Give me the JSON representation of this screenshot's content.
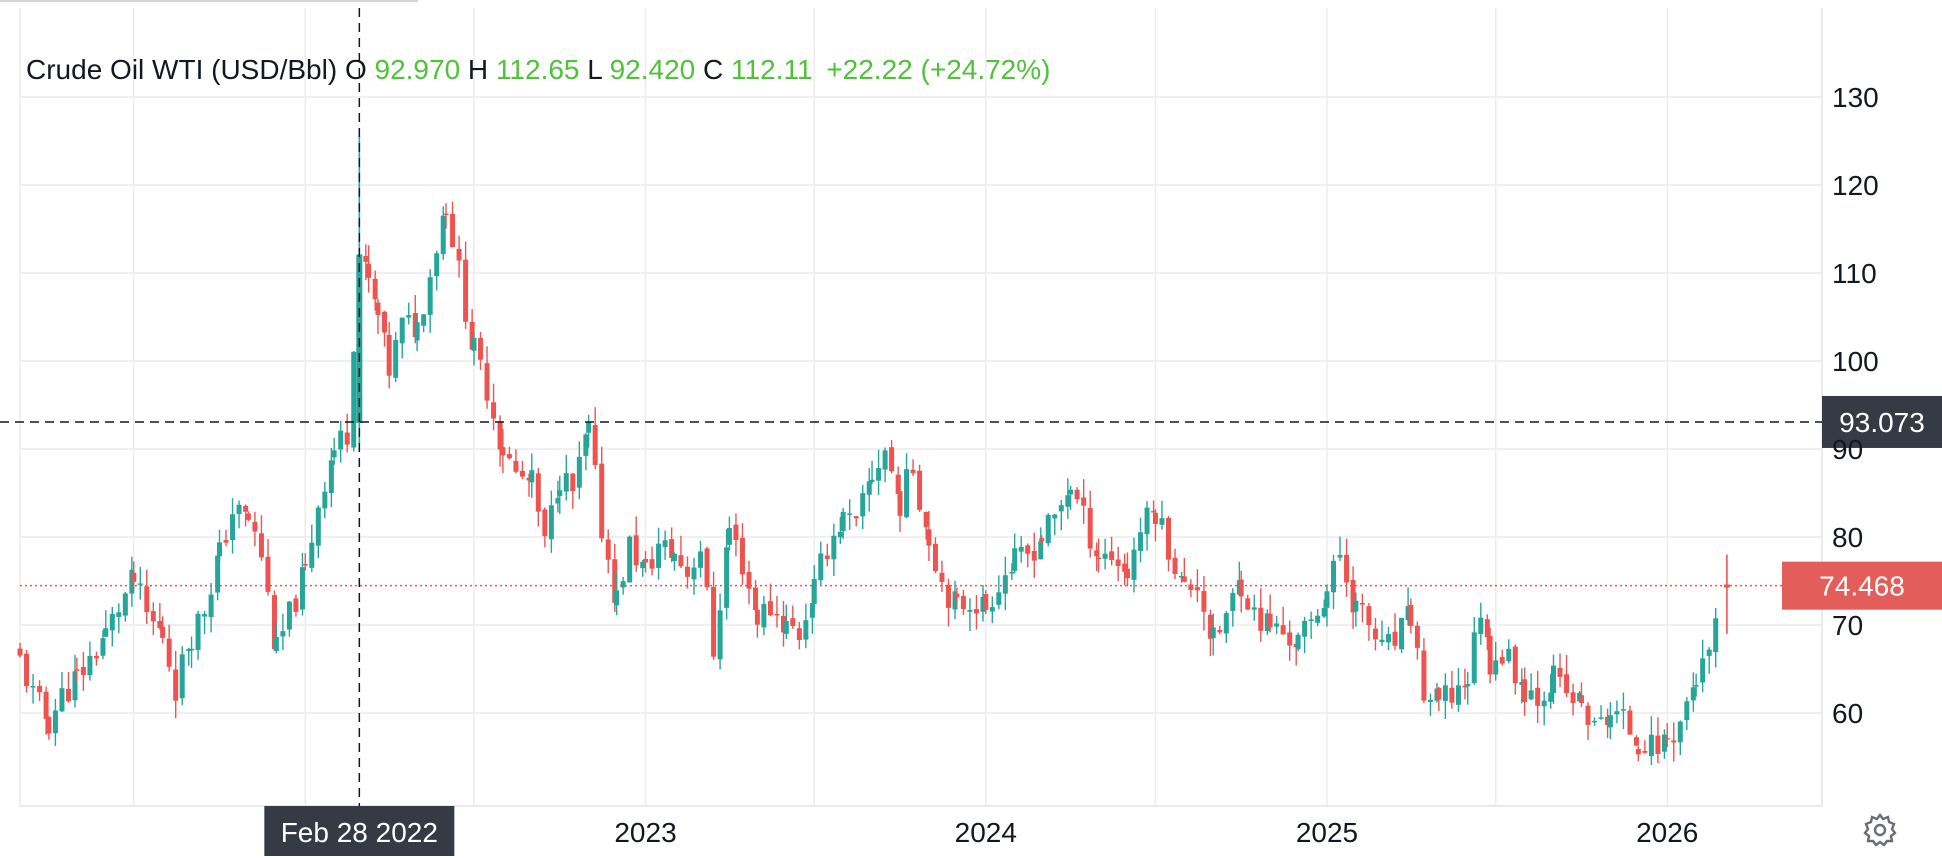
{
  "legend": {
    "symbol": "Crude Oil WTI (USD/Bbl)",
    "o_label": "O",
    "open": "92.970",
    "h_label": "H",
    "high": "112.65",
    "l_label": "L",
    "low": "92.420",
    "c_label": "C",
    "close": "112.11",
    "change": "+22.22 (+24.72%)"
  },
  "crosshair": {
    "date_label": "Feb 28 2022",
    "price_label": "93.073",
    "date": "2022-02-28",
    "price": 93.073
  },
  "last_price": {
    "label": "74.468",
    "value": 74.468
  },
  "colors": {
    "up": "#26a69a",
    "down": "#ef5350",
    "legend_value": "#4fc23a",
    "last_price_bg": "#e35d5a",
    "crosshair_bg": "#363a45",
    "grid": "#ececec"
  },
  "settings_icon": "gear-icon",
  "chart_data": {
    "type": "candlestick",
    "title": "Crude Oil WTI (USD/Bbl)",
    "interval": "weekly",
    "ylim": [
      50,
      140
    ],
    "yticks": [
      "60",
      "70",
      "80",
      "90",
      "100",
      "110",
      "120",
      "130"
    ],
    "xticks": [
      "2023",
      "2024",
      "2025",
      "2026"
    ],
    "xlim": [
      "2021-03-01",
      "2026-06-01"
    ],
    "grid": true,
    "series": [
      {
        "name": "Crude Oil WTI",
        "points": [
          [
            "2021-03-01",
            66
          ],
          [
            "2021-03-15",
            62
          ],
          [
            "2021-04-01",
            59
          ],
          [
            "2021-04-15",
            62
          ],
          [
            "2021-05-01",
            64
          ],
          [
            "2021-05-15",
            66
          ],
          [
            "2021-06-01",
            69
          ],
          [
            "2021-06-15",
            72
          ],
          [
            "2021-07-01",
            75
          ],
          [
            "2021-07-15",
            71
          ],
          [
            "2021-08-01",
            69
          ],
          [
            "2021-08-15",
            63
          ],
          [
            "2021-09-01",
            69
          ],
          [
            "2021-09-15",
            72
          ],
          [
            "2021-10-01",
            78
          ],
          [
            "2021-10-15",
            83
          ],
          [
            "2021-11-01",
            82
          ],
          [
            "2021-11-15",
            78
          ],
          [
            "2021-12-01",
            67
          ],
          [
            "2021-12-15",
            71
          ],
          [
            "2022-01-01",
            76
          ],
          [
            "2022-01-15",
            84
          ],
          [
            "2022-02-01",
            90
          ],
          [
            "2022-02-15",
            92
          ],
          [
            "2022-02-28",
            112
          ],
          [
            "2022-03-10",
            109
          ],
          [
            "2022-03-20",
            105
          ],
          [
            "2022-04-01",
            99
          ],
          [
            "2022-04-15",
            104
          ],
          [
            "2022-05-01",
            104
          ],
          [
            "2022-05-15",
            110
          ],
          [
            "2022-06-01",
            118
          ],
          [
            "2022-06-15",
            110
          ],
          [
            "2022-07-01",
            101
          ],
          [
            "2022-07-15",
            97
          ],
          [
            "2022-08-01",
            90
          ],
          [
            "2022-08-15",
            87
          ],
          [
            "2022-09-01",
            86
          ],
          [
            "2022-09-15",
            79
          ],
          [
            "2022-10-01",
            87
          ],
          [
            "2022-10-15",
            85
          ],
          [
            "2022-11-01",
            92
          ],
          [
            "2022-11-15",
            81
          ],
          [
            "2022-12-01",
            73
          ],
          [
            "2022-12-15",
            79
          ],
          [
            "2023-01-01",
            76
          ],
          [
            "2023-01-15",
            79
          ],
          [
            "2023-02-01",
            78
          ],
          [
            "2023-02-15",
            76
          ],
          [
            "2023-03-01",
            79
          ],
          [
            "2023-03-15",
            67
          ],
          [
            "2023-04-01",
            81
          ],
          [
            "2023-04-15",
            77
          ],
          [
            "2023-05-01",
            71
          ],
          [
            "2023-05-15",
            72
          ],
          [
            "2023-06-01",
            70
          ],
          [
            "2023-06-15",
            69
          ],
          [
            "2023-07-01",
            74
          ],
          [
            "2023-07-15",
            79
          ],
          [
            "2023-08-01",
            82
          ],
          [
            "2023-08-15",
            81
          ],
          [
            "2023-09-01",
            87
          ],
          [
            "2023-09-15",
            90
          ],
          [
            "2023-10-01",
            84
          ],
          [
            "2023-10-15",
            88
          ],
          [
            "2023-11-01",
            80
          ],
          [
            "2023-11-15",
            75
          ],
          [
            "2023-12-01",
            72
          ],
          [
            "2023-12-15",
            73
          ],
          [
            "2024-01-01",
            72
          ],
          [
            "2024-01-15",
            75
          ],
          [
            "2024-02-01",
            77
          ],
          [
            "2024-02-15",
            78
          ],
          [
            "2024-03-01",
            80
          ],
          [
            "2024-03-15",
            82
          ],
          [
            "2024-04-01",
            86
          ],
          [
            "2024-04-15",
            82
          ],
          [
            "2024-05-01",
            78
          ],
          [
            "2024-05-15",
            78
          ],
          [
            "2024-06-01",
            76
          ],
          [
            "2024-06-15",
            81
          ],
          [
            "2024-07-01",
            83
          ],
          [
            "2024-07-15",
            79
          ],
          [
            "2024-08-01",
            74
          ],
          [
            "2024-08-15",
            75
          ],
          [
            "2024-09-01",
            68
          ],
          [
            "2024-09-15",
            71
          ],
          [
            "2024-10-01",
            75
          ],
          [
            "2024-10-15",
            71
          ],
          [
            "2024-11-01",
            70
          ],
          [
            "2024-11-15",
            69
          ],
          [
            "2024-12-01",
            68
          ],
          [
            "2024-12-15",
            70
          ],
          [
            "2025-01-01",
            74
          ],
          [
            "2025-01-15",
            78
          ],
          [
            "2025-02-01",
            72
          ],
          [
            "2025-02-15",
            70
          ],
          [
            "2025-03-01",
            67
          ],
          [
            "2025-03-15",
            68
          ],
          [
            "2025-04-01",
            71
          ],
          [
            "2025-04-15",
            62
          ],
          [
            "2025-05-01",
            61
          ],
          [
            "2025-05-15",
            62
          ],
          [
            "2025-06-01",
            64
          ],
          [
            "2025-06-15",
            72
          ],
          [
            "2025-06-25",
            66
          ],
          [
            "2025-07-01",
            67
          ],
          [
            "2025-07-15",
            66
          ],
          [
            "2025-08-01",
            63
          ],
          [
            "2025-08-15",
            62
          ],
          [
            "2025-09-01",
            64
          ],
          [
            "2025-09-15",
            62
          ],
          [
            "2025-10-01",
            61
          ],
          [
            "2025-10-15",
            58
          ],
          [
            "2025-11-01",
            60
          ],
          [
            "2025-11-15",
            59
          ],
          [
            "2025-12-01",
            57
          ],
          [
            "2025-12-15",
            56
          ],
          [
            "2026-01-01",
            57
          ],
          [
            "2026-01-15",
            59
          ],
          [
            "2026-02-01",
            64
          ],
          [
            "2026-02-15",
            66
          ],
          [
            "2026-03-01",
            74.468
          ]
        ]
      }
    ]
  }
}
